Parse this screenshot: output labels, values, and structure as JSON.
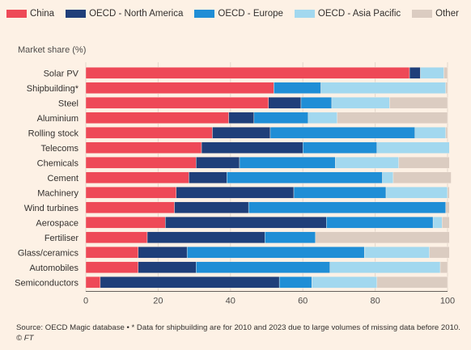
{
  "legend": [
    {
      "label": "China",
      "color": "#ee4957"
    },
    {
      "label": "OECD - North America",
      "color": "#1f3f7a"
    },
    {
      "label": "OECD - Europe",
      "color": "#1f8ed6"
    },
    {
      "label": "OECD - Asia Pacific",
      "color": "#a2d8ef"
    },
    {
      "label": "Other",
      "color": "#dbccc1"
    }
  ],
  "ylabel": "Market share (%)",
  "source": "Source: OECD Magic database • * Data for shipbuilding are for 2010 and 2023 due to large volumes of missing data before 2010.",
  "credit": "© FT",
  "chart_data": {
    "type": "bar",
    "orientation": "horizontal",
    "stacked": true,
    "categories": [
      "Solar PV",
      "Shipbuilding*",
      "Steel",
      "Aluminium",
      "Rolling stock",
      "Telecoms",
      "Chemicals",
      "Cement",
      "Machinery",
      "Wind turbines",
      "Aerospace",
      "Fertiliser",
      "Glass/ceramics",
      "Automobiles",
      "Semiconductors"
    ],
    "series": [
      {
        "name": "China",
        "values": [
          89.5,
          52,
          50.5,
          39.5,
          35,
          32,
          30.5,
          28.5,
          25,
          24.5,
          22,
          17,
          14.5,
          14.5,
          4
        ]
      },
      {
        "name": "OECD - North America",
        "values": [
          3,
          0,
          9,
          7,
          16,
          28,
          12,
          10.5,
          32.5,
          20.5,
          44.5,
          32.5,
          13.5,
          16,
          49.5
        ]
      },
      {
        "name": "OECD - Europe",
        "values": [
          0,
          13,
          8.5,
          15,
          40,
          20.5,
          26.5,
          43,
          25.5,
          54.5,
          29.5,
          14,
          49,
          37,
          9
        ]
      },
      {
        "name": "OECD - Asia Pacific",
        "values": [
          6.5,
          34.5,
          16,
          8,
          8.5,
          20,
          17.5,
          3,
          17,
          0,
          2.5,
          0,
          18,
          30.5,
          18
        ]
      },
      {
        "name": "Other",
        "values": [
          1,
          0.5,
          16,
          30.5,
          0.5,
          0,
          14,
          16,
          0.5,
          1,
          2,
          37,
          5.5,
          2,
          19.5
        ]
      }
    ],
    "xticks": [
      0,
      20,
      40,
      60,
      80,
      100
    ],
    "xlim": [
      0,
      100
    ],
    "xlabel": "",
    "legend_position": "top",
    "grid": true
  }
}
